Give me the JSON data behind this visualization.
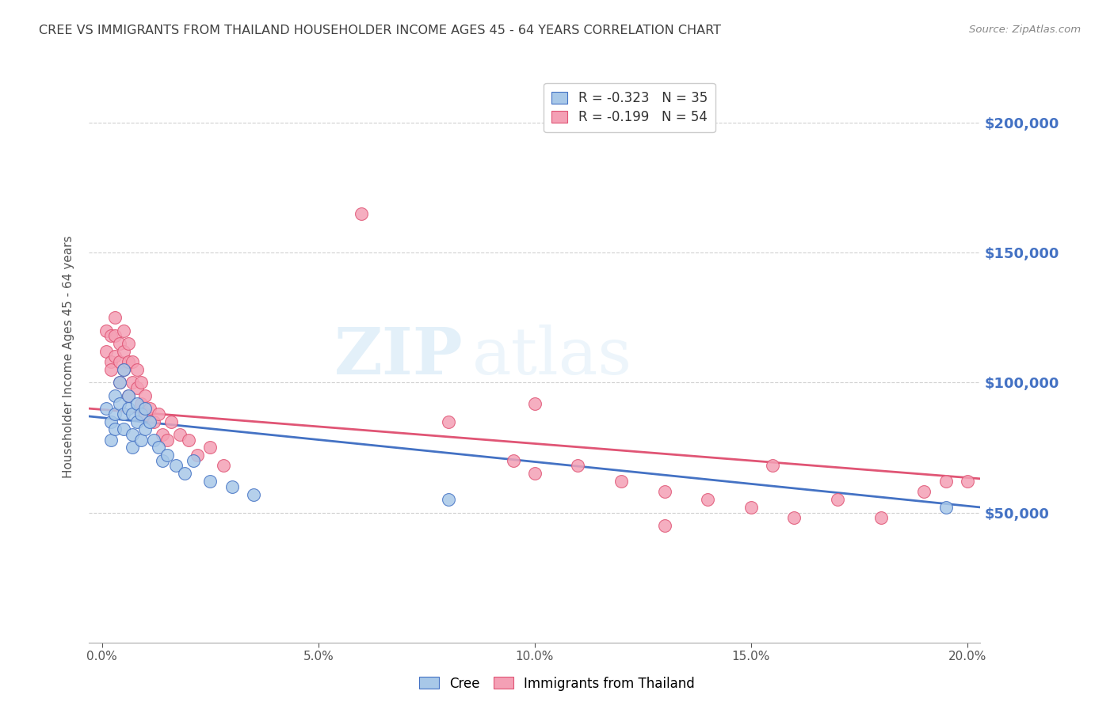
{
  "title": "CREE VS IMMIGRANTS FROM THAILAND HOUSEHOLDER INCOME AGES 45 - 64 YEARS CORRELATION CHART",
  "source": "Source: ZipAtlas.com",
  "ylabel": "Householder Income Ages 45 - 64 years",
  "xlabel_ticks": [
    "0.0%",
    "5.0%",
    "10.0%",
    "15.0%",
    "20.0%"
  ],
  "xlabel_vals": [
    0.0,
    0.05,
    0.1,
    0.15,
    0.2
  ],
  "ytick_labels": [
    "$50,000",
    "$100,000",
    "$150,000",
    "$200,000"
  ],
  "ytick_vals": [
    50000,
    100000,
    150000,
    200000
  ],
  "ylim": [
    0,
    220000
  ],
  "xlim": [
    -0.003,
    0.203
  ],
  "watermark_zip": "ZIP",
  "watermark_atlas": "atlas",
  "legend_items": [
    {
      "label": "R = -0.323   N = 35",
      "color": "#a8c8e8"
    },
    {
      "label": "R = -0.199   N = 54",
      "color": "#f4a0b5"
    }
  ],
  "legend_series": [
    "Cree",
    "Immigrants from Thailand"
  ],
  "cree_color": "#a8c8e8",
  "thailand_color": "#f4a0b5",
  "trendline_cree_color": "#4472c4",
  "trendline_thailand_color": "#e05575",
  "background_color": "#ffffff",
  "grid_color": "#d0d0d0",
  "title_color": "#404040",
  "axis_label_color": "#555555",
  "right_tick_color": "#4472c4",
  "cree_x": [
    0.001,
    0.002,
    0.002,
    0.003,
    0.003,
    0.003,
    0.004,
    0.004,
    0.005,
    0.005,
    0.005,
    0.006,
    0.006,
    0.007,
    0.007,
    0.007,
    0.008,
    0.008,
    0.009,
    0.009,
    0.01,
    0.01,
    0.011,
    0.012,
    0.013,
    0.014,
    0.015,
    0.017,
    0.019,
    0.021,
    0.025,
    0.03,
    0.035,
    0.08,
    0.195
  ],
  "cree_y": [
    90000,
    85000,
    78000,
    95000,
    88000,
    82000,
    100000,
    92000,
    105000,
    88000,
    82000,
    95000,
    90000,
    88000,
    80000,
    75000,
    92000,
    85000,
    88000,
    78000,
    90000,
    82000,
    85000,
    78000,
    75000,
    70000,
    72000,
    68000,
    65000,
    70000,
    62000,
    60000,
    57000,
    55000,
    52000
  ],
  "thailand_x": [
    0.001,
    0.001,
    0.002,
    0.002,
    0.002,
    0.003,
    0.003,
    0.003,
    0.004,
    0.004,
    0.004,
    0.005,
    0.005,
    0.005,
    0.006,
    0.006,
    0.006,
    0.007,
    0.007,
    0.008,
    0.008,
    0.009,
    0.009,
    0.01,
    0.01,
    0.011,
    0.012,
    0.013,
    0.014,
    0.015,
    0.016,
    0.018,
    0.02,
    0.022,
    0.025,
    0.028,
    0.06,
    0.08,
    0.095,
    0.1,
    0.11,
    0.12,
    0.13,
    0.14,
    0.15,
    0.16,
    0.17,
    0.18,
    0.19,
    0.195,
    0.1,
    0.13,
    0.155,
    0.2
  ],
  "thailand_y": [
    120000,
    112000,
    118000,
    108000,
    105000,
    125000,
    118000,
    110000,
    115000,
    108000,
    100000,
    120000,
    112000,
    105000,
    115000,
    108000,
    95000,
    108000,
    100000,
    105000,
    98000,
    100000,
    92000,
    95000,
    88000,
    90000,
    85000,
    88000,
    80000,
    78000,
    85000,
    80000,
    78000,
    72000,
    75000,
    68000,
    165000,
    85000,
    70000,
    65000,
    68000,
    62000,
    58000,
    55000,
    52000,
    48000,
    55000,
    48000,
    58000,
    62000,
    92000,
    45000,
    68000,
    62000
  ]
}
